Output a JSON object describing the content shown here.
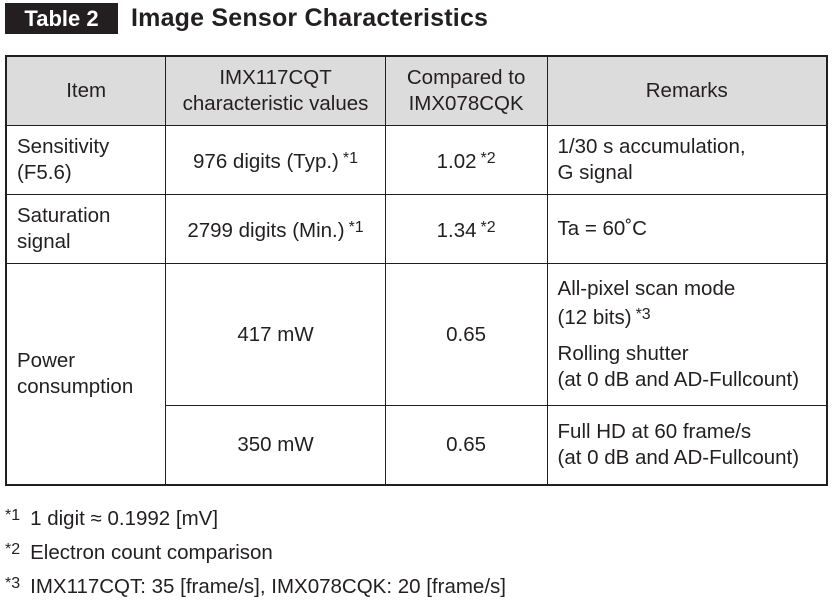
{
  "header": {
    "label": "Table 2",
    "title": "Image Sensor Characteristics"
  },
  "table": {
    "columns": [
      [
        "Item"
      ],
      [
        "IMX117CQT",
        "characteristic values"
      ],
      [
        "Compared to",
        "IMX078CQK"
      ],
      [
        "Remarks"
      ]
    ],
    "rows": [
      {
        "item": [
          "Sensitivity",
          "(F5.6)"
        ],
        "value": {
          "text": "976 digits (Typ.)",
          "note": "*1"
        },
        "ratio": {
          "text": "1.02",
          "note": "*2"
        },
        "remarks": [
          [
            "1/30 s accumulation,",
            "G signal"
          ]
        ]
      },
      {
        "item": [
          "Saturation",
          "signal"
        ],
        "value": {
          "text": "2799 digits (Min.)",
          "note": "*1"
        },
        "ratio": {
          "text": "1.34",
          "note": "*2"
        },
        "remarks": [
          [
            "Ta = 60˚C"
          ]
        ]
      },
      {
        "item": [
          "Power",
          "consumption"
        ],
        "subrows": [
          {
            "value": "417 mW",
            "ratio": "0.65",
            "remarks": [
              [
                "All-pixel scan mode",
                {
                  "text": "(12 bits)",
                  "note": "*3"
                }
              ],
              [
                "Rolling shutter",
                "(at 0 dB and AD-Fullcount)"
              ]
            ]
          },
          {
            "value": "350 mW",
            "ratio": "0.65",
            "remarks": [
              [
                "Full HD at 60 frame/s",
                "(at 0 dB and AD-Fullcount)"
              ]
            ]
          }
        ]
      }
    ]
  },
  "footnotes": [
    {
      "mark": "*1",
      "text": "1 digit ≈ 0.1992 [mV]"
    },
    {
      "mark": "*2",
      "text": "Electron count comparison"
    },
    {
      "mark": "*3",
      "text": "IMX117CQT: 35 [frame/s], IMX078CQK: 20 [frame/s]"
    }
  ]
}
